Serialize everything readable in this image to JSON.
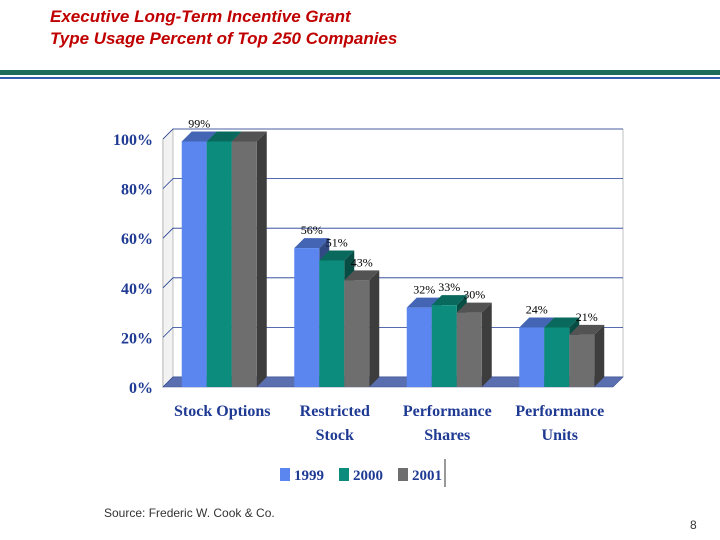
{
  "slide": {
    "title_line1": "Executive Long-Term Incentive Grant",
    "title_line2": "Type Usage Percent of Top 250 Companies",
    "source": "Source:  Frederic W. Cook & Co.",
    "page_number": "8"
  },
  "colors": {
    "title": "#c00000",
    "rule_dark": "#1a6b5a",
    "rule_blue": "#2d5fae",
    "axis_text": "#1f3a93"
  },
  "chart_data": {
    "type": "bar",
    "title": "",
    "xlabel": "",
    "ylabel": "",
    "categories": [
      [
        "Stock Options"
      ],
      [
        "Restricted",
        "Stock"
      ],
      [
        "Performance",
        "Shares"
      ],
      [
        "Performance",
        "Units"
      ]
    ],
    "series": [
      {
        "name": "1999",
        "values": [
          99,
          56,
          32,
          24
        ],
        "labels": [
          "99%",
          "56%",
          "32%",
          "24%"
        ],
        "color": "#5b86f0"
      },
      {
        "name": "2000",
        "values": [
          99,
          51,
          33,
          24
        ],
        "labels": [
          "",
          "51%",
          "33%",
          ""
        ],
        "color": "#0c8c7c"
      },
      {
        "name": "2001",
        "values": [
          99,
          43,
          30,
          21
        ],
        "labels": [
          "",
          "43%",
          "30%",
          "21%"
        ],
        "color": "#6e6e6e"
      }
    ],
    "ylim": [
      0,
      100
    ],
    "yticks": [
      {
        "value": 0,
        "label": "0%"
      },
      {
        "value": 20,
        "label": "20%"
      },
      {
        "value": 40,
        "label": "40%"
      },
      {
        "value": 60,
        "label": "60%"
      },
      {
        "value": 80,
        "label": "80%"
      },
      {
        "value": 100,
        "label": "100%"
      }
    ],
    "grid": true,
    "legend_position": "bottom"
  }
}
